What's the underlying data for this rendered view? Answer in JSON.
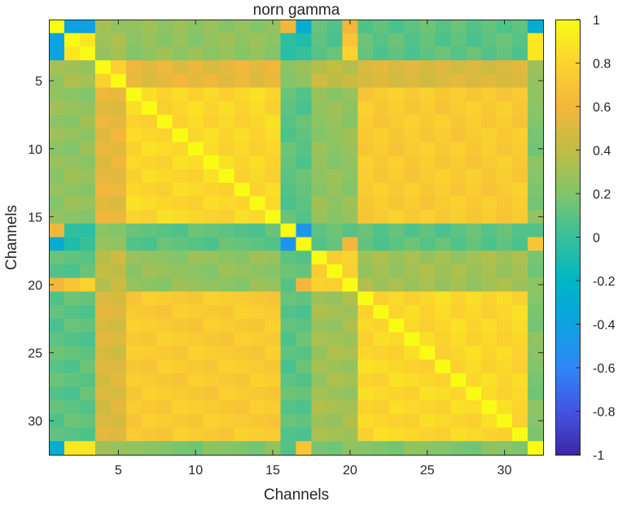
{
  "chart_data": {
    "type": "heatmap",
    "title": "norn gamma",
    "xlabel": "Channels",
    "ylabel": "Channels",
    "n": 32,
    "x_ticks": [
      5,
      10,
      15,
      20,
      25,
      30
    ],
    "y_ticks": [
      5,
      10,
      15,
      20,
      25,
      30
    ],
    "clim": [
      -1,
      1
    ],
    "colorbar_ticks": [
      1,
      0.8,
      0.6,
      0.4,
      0.2,
      0,
      -0.2,
      -0.4,
      -0.6,
      -0.8,
      -1
    ],
    "colormap": "parula",
    "colormap_stops": [
      "#3e26a8",
      "#4354e2",
      "#2e87f7",
      "#0da2e2",
      "#00b6c4",
      "#36c09a",
      "#82c56a",
      "#c1bd43",
      "#f2b73c",
      "#fbd32e",
      "#f9fb15"
    ],
    "groups": {
      "A": [
        1,
        2,
        3
      ],
      "B": [
        4,
        5
      ],
      "C": [
        6,
        7,
        8,
        9,
        10,
        11,
        12,
        13,
        14,
        15
      ],
      "D": [
        16,
        17
      ],
      "E": [
        18,
        19,
        20
      ],
      "F": [
        21,
        22,
        23,
        24,
        25,
        26,
        27,
        28,
        29,
        30,
        31
      ],
      "G": [
        32
      ]
    },
    "group_correlations": {
      "A": {
        "A": 0.85,
        "B": 0.3,
        "C": 0.25,
        "D": -0.05,
        "E": 0.1,
        "F": 0.1,
        "G": 0.05
      },
      "B": {
        "A": 0.3,
        "B": 0.8,
        "C": 0.55,
        "D": 0.25,
        "E": 0.4,
        "F": 0.5,
        "G": 0.3
      },
      "C": {
        "A": 0.25,
        "B": 0.55,
        "C": 0.82,
        "D": 0.1,
        "E": 0.25,
        "F": 0.74,
        "G": 0.2
      },
      "D": {
        "A": -0.05,
        "B": 0.25,
        "C": 0.1,
        "D": 0.85,
        "E": 0.1,
        "F": 0.1,
        "G": 0.05
      },
      "E": {
        "A": 0.1,
        "B": 0.4,
        "C": 0.25,
        "D": 0.1,
        "E": 0.75,
        "F": 0.3,
        "G": 0.2
      },
      "F": {
        "A": 0.1,
        "B": 0.5,
        "C": 0.74,
        "D": 0.1,
        "E": 0.3,
        "F": 0.82,
        "G": 0.2
      },
      "G": {
        "A": 0.05,
        "B": 0.3,
        "C": 0.2,
        "D": 0.05,
        "E": 0.2,
        "F": 0.2,
        "G": 1
      }
    },
    "diagonal": 1,
    "cell_overrides": [
      [
        1,
        2,
        -0.4
      ],
      [
        1,
        3,
        -0.4
      ],
      [
        1,
        16,
        0.6
      ],
      [
        1,
        17,
        -0.3
      ],
      [
        1,
        20,
        0.6
      ],
      [
        1,
        32,
        -0.3
      ],
      [
        2,
        20,
        0.7
      ],
      [
        3,
        20,
        0.8
      ],
      [
        2,
        32,
        0.9
      ],
      [
        3,
        32,
        0.9
      ],
      [
        16,
        17,
        -0.5
      ],
      [
        17,
        20,
        0.6
      ],
      [
        17,
        32,
        0.7
      ]
    ]
  }
}
